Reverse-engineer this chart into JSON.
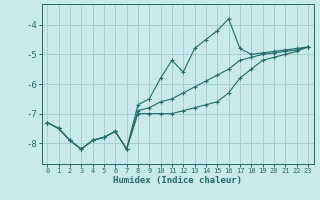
{
  "xlabel": "Humidex (Indice chaleur)",
  "background_color": "#c8eaea",
  "grid_color": "#a8d0d0",
  "line_color": "#236b6b",
  "x_values": [
    0,
    1,
    2,
    3,
    4,
    5,
    6,
    7,
    8,
    9,
    10,
    11,
    12,
    13,
    14,
    15,
    16,
    17,
    18,
    19,
    20,
    21,
    22,
    23
  ],
  "line1": [
    -7.3,
    -7.5,
    -7.9,
    -8.2,
    -7.9,
    -7.8,
    -7.6,
    -8.2,
    -6.7,
    -6.5,
    -5.8,
    -5.2,
    -5.6,
    -4.8,
    -4.5,
    -4.2,
    -3.8,
    -4.8,
    -5.0,
    -4.95,
    -4.9,
    -4.85,
    -4.8,
    -4.75
  ],
  "line2": [
    -7.3,
    -7.5,
    -7.9,
    -8.2,
    -7.9,
    -7.8,
    -7.6,
    -8.2,
    -6.9,
    -6.8,
    -6.6,
    -6.5,
    -6.3,
    -6.1,
    -5.9,
    -5.7,
    -5.5,
    -5.2,
    -5.1,
    -5.0,
    -4.95,
    -4.9,
    -4.85,
    -4.75
  ],
  "line3": [
    -7.3,
    -7.5,
    -7.9,
    -8.2,
    -7.9,
    -7.8,
    -7.6,
    -8.2,
    -7.0,
    -7.0,
    -7.0,
    -7.0,
    -6.9,
    -6.8,
    -6.7,
    -6.6,
    -6.3,
    -5.8,
    -5.5,
    -5.2,
    -5.1,
    -5.0,
    -4.9,
    -4.75
  ],
  "xlim": [
    -0.5,
    23.5
  ],
  "ylim": [
    -8.7,
    -3.3
  ],
  "yticks": [
    -8,
    -7,
    -6,
    -5,
    -4
  ],
  "xticks": [
    0,
    1,
    2,
    3,
    4,
    5,
    6,
    7,
    8,
    9,
    10,
    11,
    12,
    13,
    14,
    15,
    16,
    17,
    18,
    19,
    20,
    21,
    22,
    23
  ]
}
